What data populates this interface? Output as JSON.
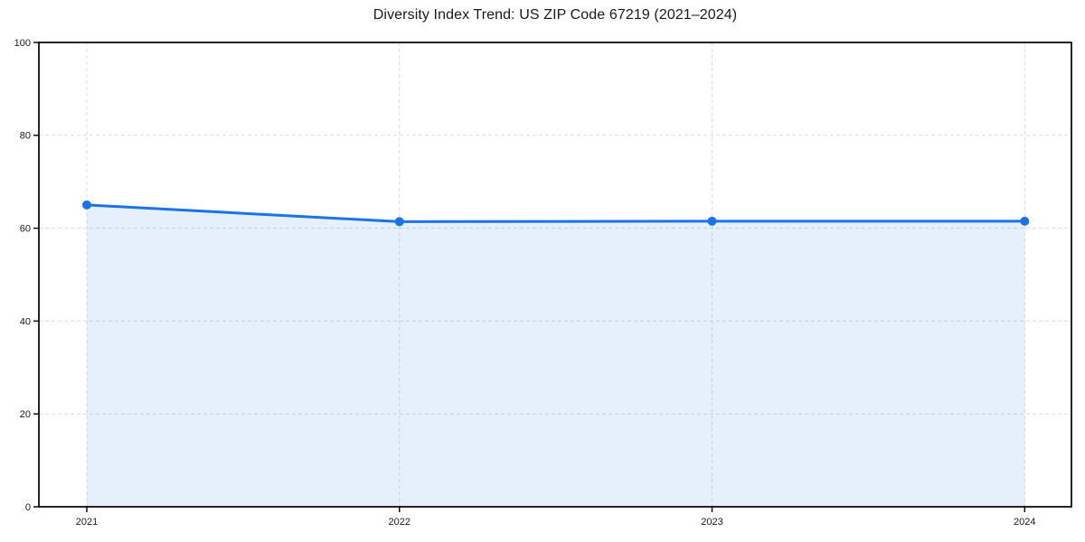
{
  "page": {
    "background_color": "#ffffff"
  },
  "chart_data": {
    "type": "area",
    "title": "Diversity Index Trend: US ZIP Code 67219 (2021–2024)",
    "x": [
      "2021",
      "2022",
      "2023",
      "2024"
    ],
    "values": [
      65,
      61.4,
      61.5,
      61.5
    ],
    "xlabel": "",
    "ylabel": "",
    "ylim": [
      0,
      100
    ],
    "yticks": [
      0,
      20,
      40,
      60,
      80,
      100
    ],
    "legend": "none",
    "grid": {
      "visible": true,
      "style": "dashed",
      "color": "#dcdcdc"
    },
    "line_color": "#1a73e8",
    "marker_color": "#1a73e8",
    "fill_color": "rgba(26,115,232,0.11)",
    "axis_color": "#000000",
    "tick_label_color": "#1a1a1a"
  }
}
